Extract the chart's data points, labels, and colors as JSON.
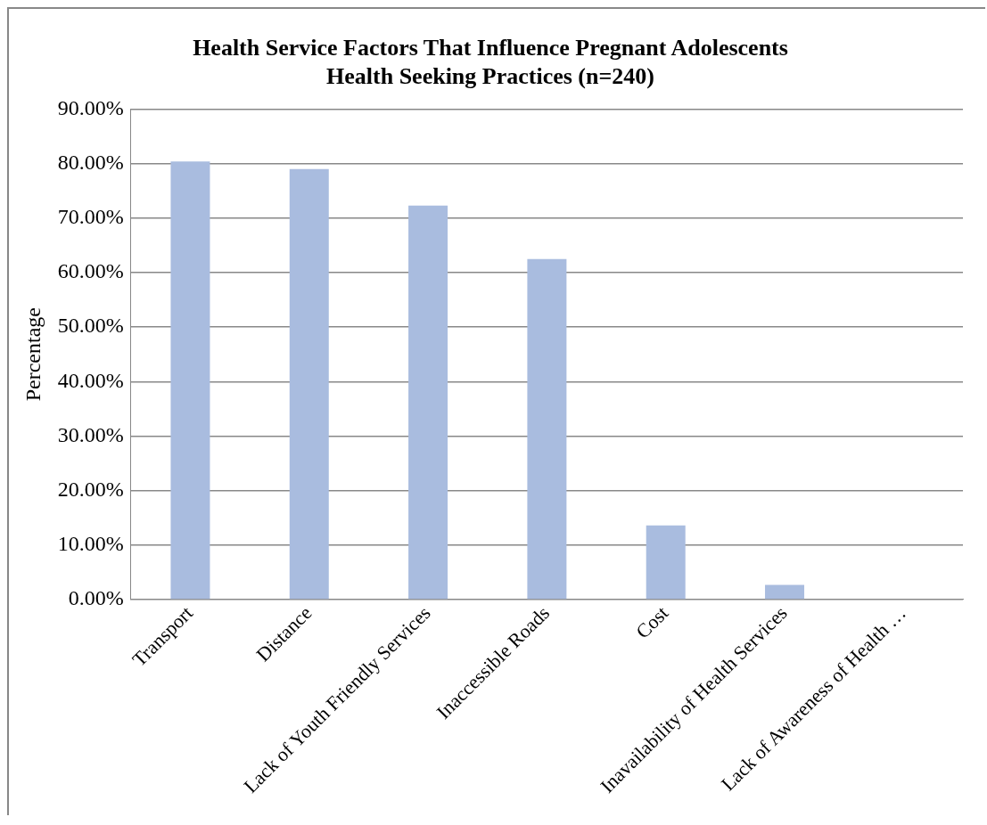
{
  "chart_data": {
    "type": "bar",
    "title": [
      "Health Service Factors That Influence Pregnant Adolescents",
      "Health Seeking Practices (n=240)"
    ],
    "ylabel": "Percentage",
    "categories": [
      "Transport",
      "Distance",
      "Lack of Youth Friendly Services",
      "Inaccessible Roads",
      "Cost",
      "Inavailability of Health Services",
      "Lack of Awareness of Health …"
    ],
    "values": [
      80.4,
      79.0,
      72.3,
      62.5,
      13.6,
      2.7,
      0
    ],
    "color": "#a9bcdf",
    "ylim": [
      0,
      90
    ],
    "yticks": [
      {
        "value": 0,
        "label": "0.00%"
      },
      {
        "value": 10,
        "label": "10.00%"
      },
      {
        "value": 20,
        "label": "20.00%"
      },
      {
        "value": 30,
        "label": "30.00%"
      },
      {
        "value": 40,
        "label": "40.00%"
      },
      {
        "value": 50,
        "label": "50.00%"
      },
      {
        "value": 60,
        "label": "60.00%"
      },
      {
        "value": 70,
        "label": "70.00%"
      },
      {
        "value": 80,
        "label": "80.00%"
      },
      {
        "value": 90,
        "label": "90.00%"
      }
    ],
    "grid": "y",
    "legend": false
  }
}
